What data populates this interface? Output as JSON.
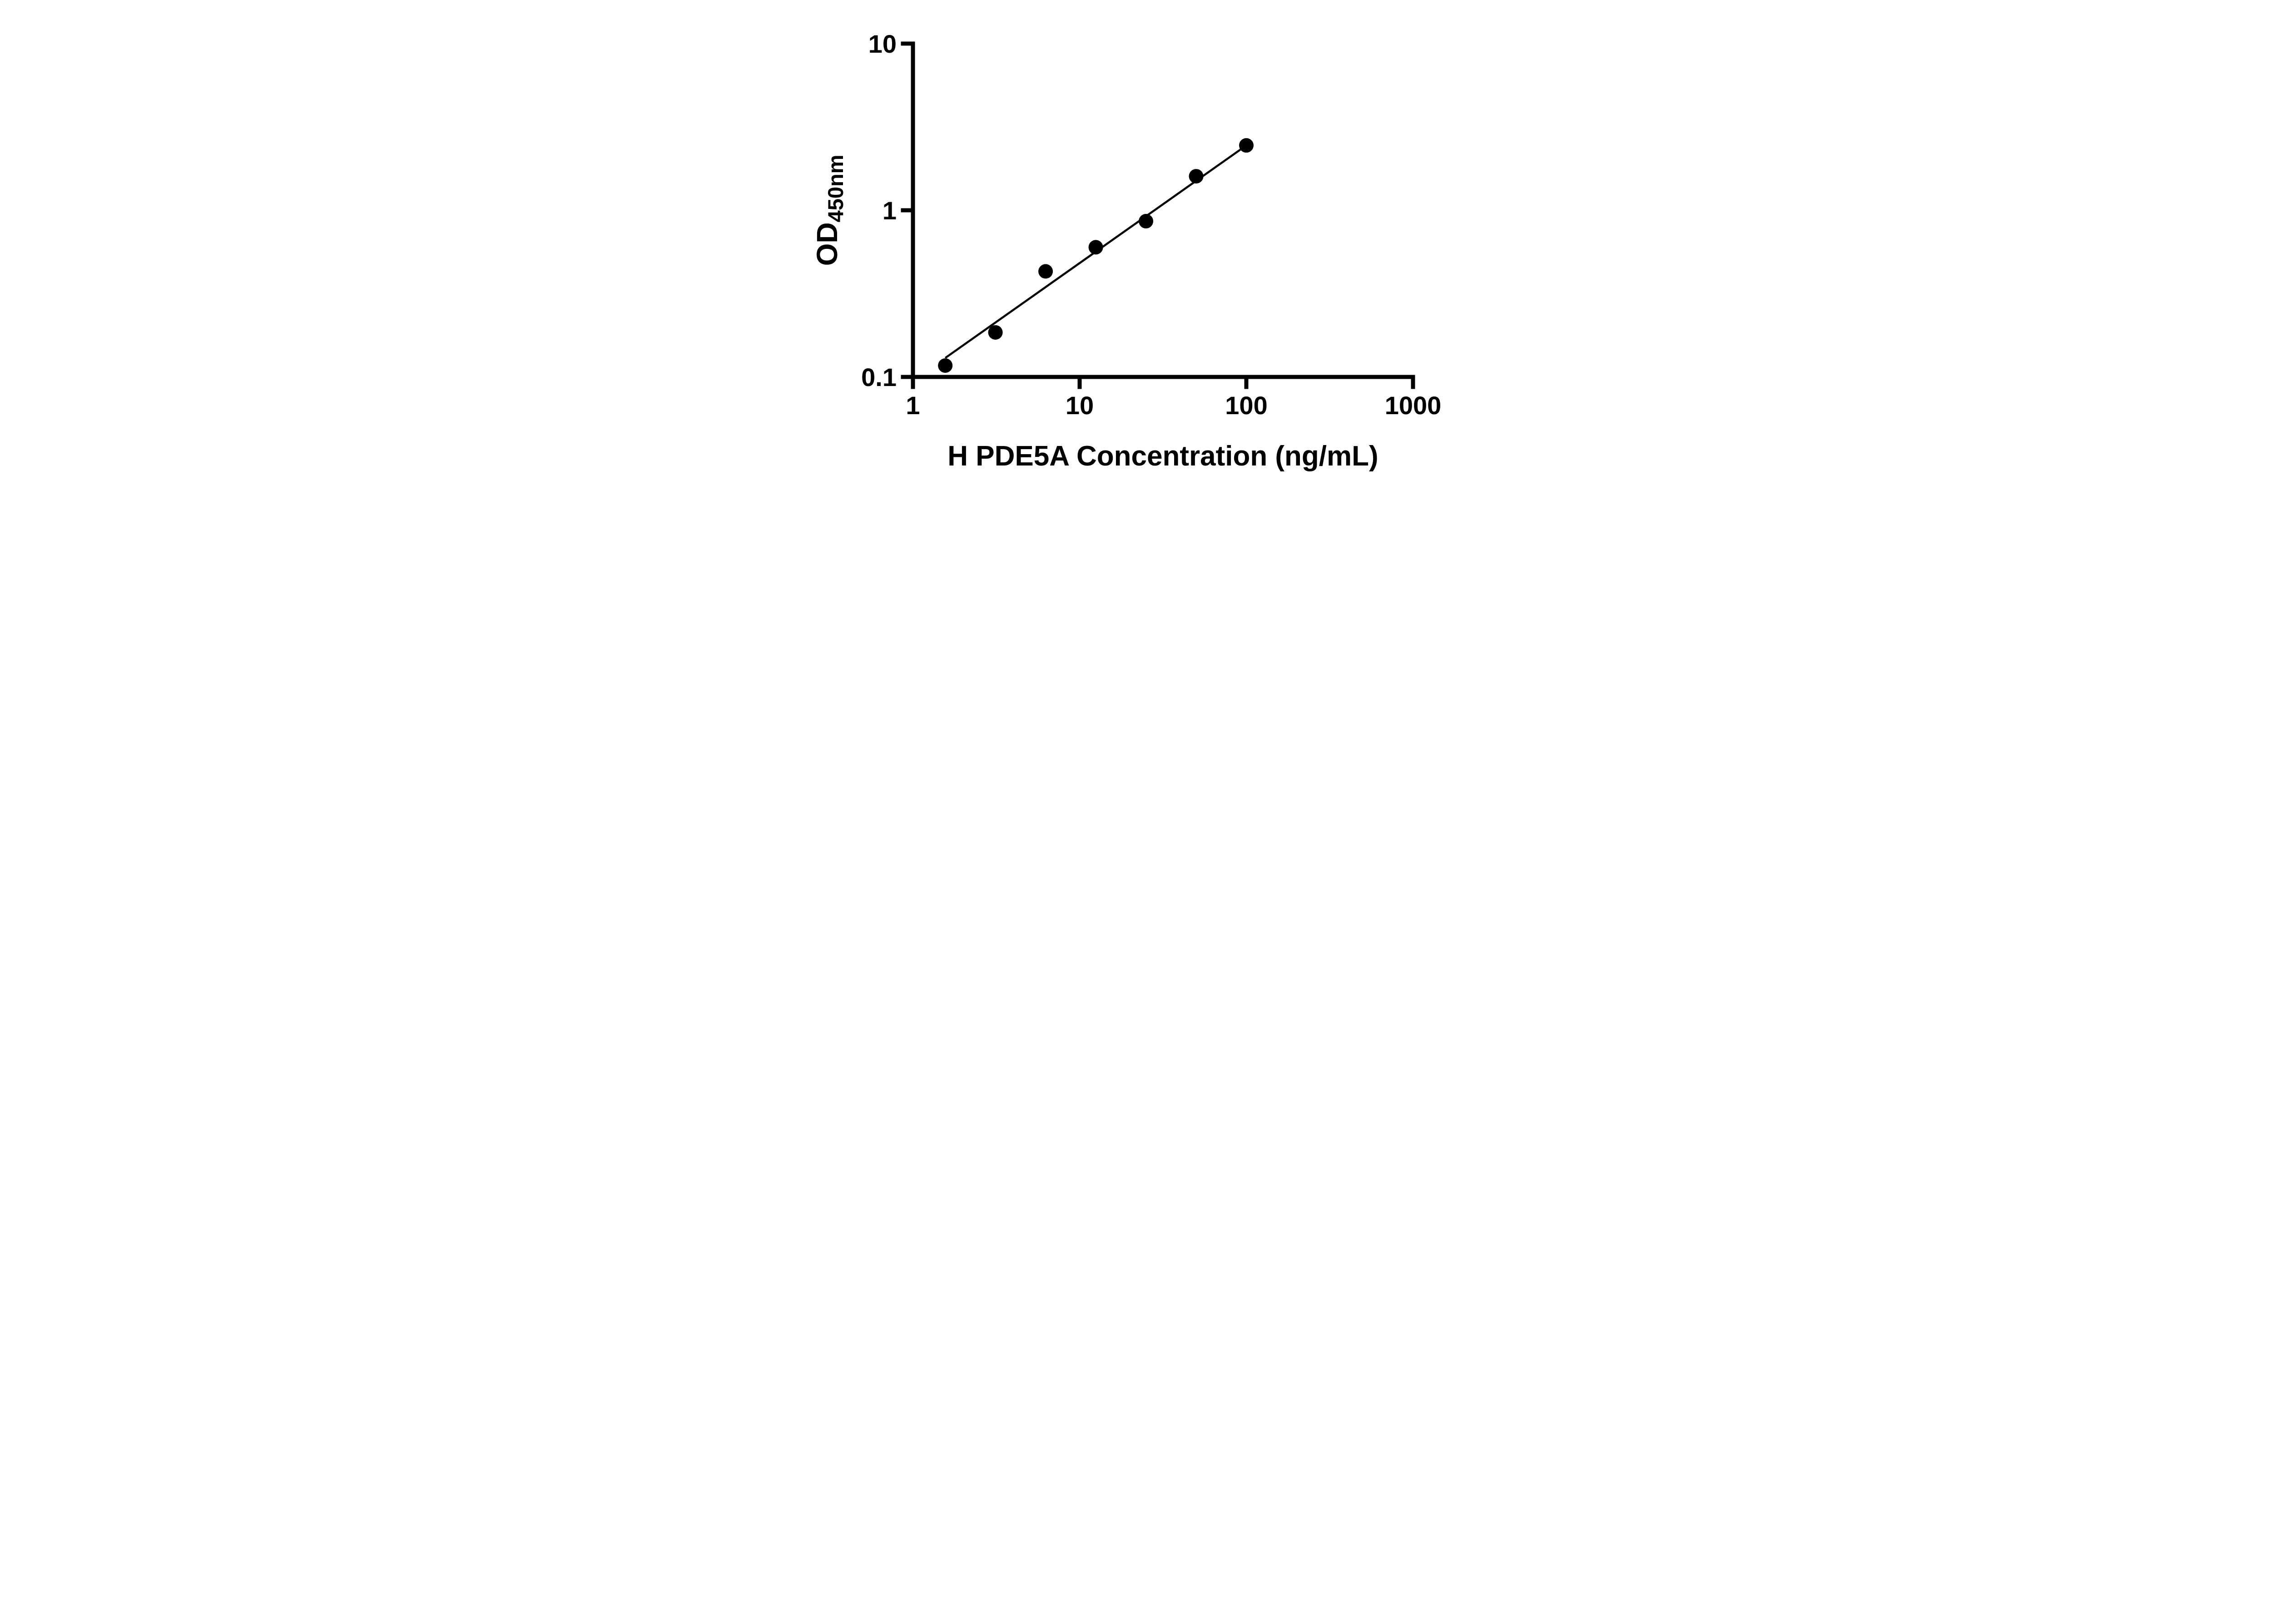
{
  "page": {
    "background_color": "#ffffff",
    "foreground_color": "#000000"
  },
  "chart_data": {
    "type": "scatter",
    "title": "",
    "xlabel": "H PDE5A Concentration (ng/mL)",
    "ylabel_main": "OD",
    "ylabel_sub": "450nm",
    "x_scale": "log",
    "y_scale": "log",
    "xlim": [
      1,
      1000
    ],
    "ylim": [
      0.1,
      10
    ],
    "x_ticks": [
      1,
      10,
      100,
      1000
    ],
    "x_tick_labels": [
      "1",
      "10",
      "100",
      "1000"
    ],
    "y_ticks": [
      0.1,
      1,
      10
    ],
    "y_tick_labels": [
      "0.1",
      "1",
      "10"
    ],
    "grid": false,
    "legend": false,
    "axis_color": "#000000",
    "axis_width": 9,
    "tick_length": 22,
    "series": [
      {
        "name": "standard-points",
        "type": "scatter",
        "x": [
          1.563,
          3.125,
          6.25,
          12.5,
          25,
          50,
          100
        ],
        "y": [
          0.117,
          0.185,
          0.43,
          0.6,
          0.86,
          1.6,
          2.45
        ],
        "marker": "circle",
        "marker_color": "#000000",
        "marker_radius": 16
      },
      {
        "name": "fit-line",
        "type": "line",
        "x": [
          1.563,
          100
        ],
        "y": [
          0.13,
          2.45
        ],
        "color": "#000000",
        "width": 4.5
      }
    ]
  }
}
